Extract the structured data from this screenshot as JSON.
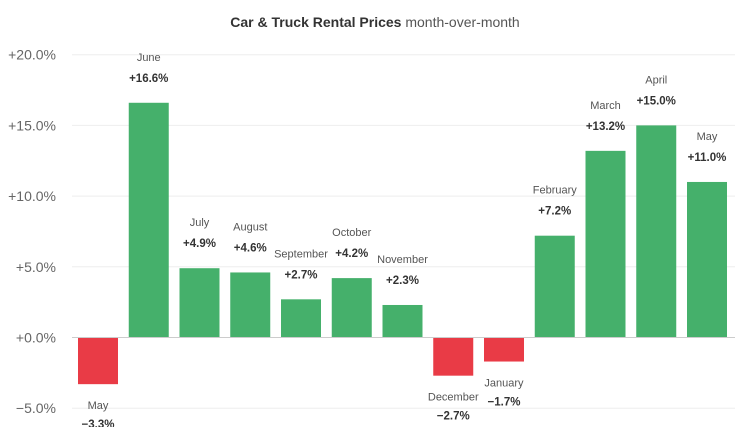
{
  "chart_data": {
    "type": "bar",
    "title": "Car & Truck Rental Prices",
    "subtitle": "month-over-month",
    "categories": [
      "May",
      "June",
      "July",
      "August",
      "September",
      "October",
      "November",
      "December",
      "January",
      "February",
      "March",
      "April",
      "May"
    ],
    "values": [
      -3.3,
      16.6,
      4.9,
      4.6,
      2.7,
      4.2,
      2.3,
      -2.7,
      -1.7,
      7.2,
      13.2,
      15.0,
      11.0
    ],
    "value_labels": [
      "−3.3%",
      "+16.6%",
      "+4.9%",
      "+4.6%",
      "+2.7%",
      "+4.2%",
      "+2.3%",
      "−2.7%",
      "−1.7%",
      "+7.2%",
      "+13.2%",
      "+15.0%",
      "+11.0%"
    ],
    "yticks": [
      20,
      15,
      10,
      5,
      0,
      -5
    ],
    "ytick_labels": [
      "+20.0%",
      "+15.0%",
      "+10.0%",
      "+5.0%",
      "+0.0%",
      "−5.0%"
    ],
    "ylim": [
      -5,
      20
    ],
    "xlabel": "",
    "ylabel": "",
    "grid": true,
    "colors": {
      "positive": "#45b06b",
      "negative": "#e93b46"
    }
  }
}
